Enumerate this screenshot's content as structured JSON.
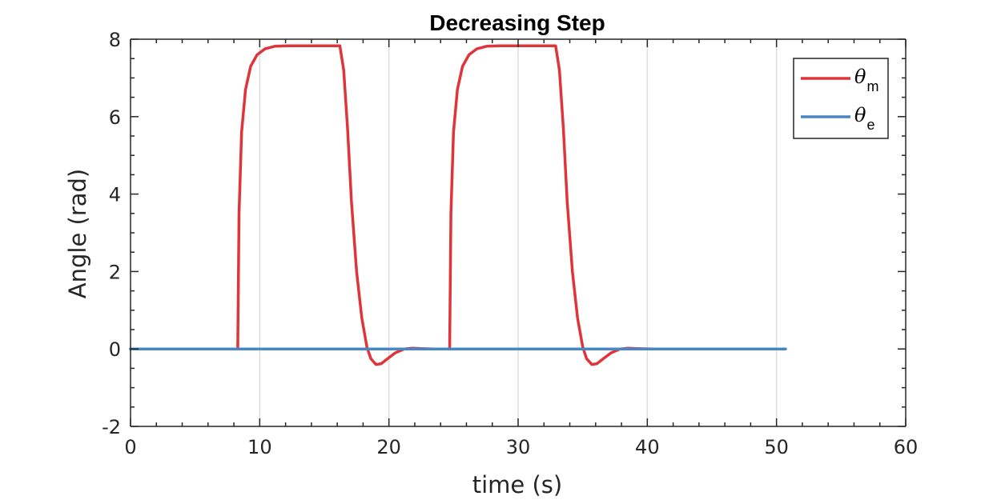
{
  "chart_data": {
    "type": "line",
    "title": "Decreasing Step",
    "xlabel": "time (s)",
    "ylabel": "Angle (rad)",
    "xlim": [
      0,
      60
    ],
    "ylim": [
      -2,
      8
    ],
    "xticks": [
      0,
      10,
      20,
      30,
      40,
      50,
      60
    ],
    "yticks": [
      -2,
      0,
      2,
      4,
      6,
      8
    ],
    "xtick_labels": [
      "0",
      "10",
      "20",
      "30",
      "40",
      "50",
      "60"
    ],
    "ytick_labels": [
      "-2",
      "0",
      "2",
      "4",
      "6",
      "8"
    ],
    "grid": "vertical",
    "legend_position": "top-right",
    "series": [
      {
        "name": "θ_m",
        "legend_symbol": "θ",
        "legend_subscript": "m",
        "color": "#e0343b",
        "x": [
          0,
          8.3,
          8.4,
          8.6,
          8.9,
          9.3,
          9.8,
          10.4,
          11.2,
          12.2,
          13.5,
          15,
          16.2,
          16.5,
          16.8,
          17.1,
          17.5,
          17.9,
          18.3,
          18.6,
          19,
          19.4,
          19.9,
          20.5,
          21.2,
          21.8,
          22.5,
          23.5,
          24.7,
          24.8,
          25,
          25.3,
          25.7,
          26.2,
          26.8,
          27.6,
          28.6,
          29.9,
          31.4,
          32.9,
          33.2,
          33.5,
          33.8,
          34.2,
          34.6,
          35,
          35.3,
          35.7,
          36.1,
          36.6,
          37.2,
          37.9,
          38.5,
          39.2,
          40.5
        ],
        "y": [
          0,
          0,
          3.5,
          5.6,
          6.7,
          7.3,
          7.6,
          7.75,
          7.82,
          7.83,
          7.83,
          7.83,
          7.83,
          7.2,
          5.7,
          3.8,
          2,
          0.8,
          0.05,
          -0.25,
          -0.4,
          -0.38,
          -0.25,
          -0.1,
          0,
          0.02,
          0.01,
          0,
          0,
          3.5,
          5.6,
          6.7,
          7.3,
          7.6,
          7.75,
          7.82,
          7.83,
          7.83,
          7.83,
          7.83,
          7.2,
          5.7,
          3.8,
          2,
          0.8,
          0.05,
          -0.25,
          -0.4,
          -0.38,
          -0.25,
          -0.1,
          0,
          0.02,
          0.01,
          0
        ]
      },
      {
        "name": "θ_e",
        "legend_symbol": "θ",
        "legend_subscript": "e",
        "color": "#4a86c0",
        "x": [
          0,
          50.7
        ],
        "y": [
          0,
          0
        ]
      }
    ]
  }
}
